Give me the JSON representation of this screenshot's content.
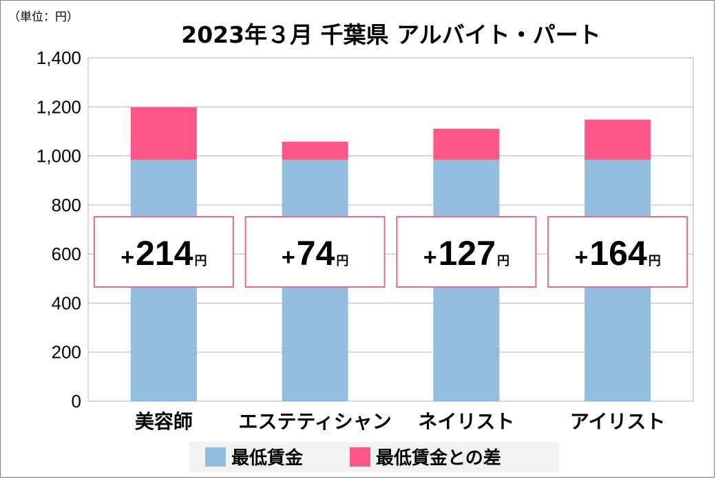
{
  "chart_data": {
    "type": "bar",
    "stacked": true,
    "title": "2023年３月 千葉県 アルバイト・パート",
    "unit_label": "（単位：円）",
    "categories": [
      "美容師",
      "エステティシャン",
      "ネイリスト",
      "アイリスト"
    ],
    "series": [
      {
        "name": "最低賃金",
        "color": "#92bddf",
        "values": [
          984,
          984,
          984,
          984
        ]
      },
      {
        "name": "最低賃金との差",
        "color": "#ff578a",
        "values": [
          214,
          74,
          127,
          164
        ]
      }
    ],
    "annotations": [
      {
        "prefix": "+",
        "value": "214",
        "suffix": "円"
      },
      {
        "prefix": "+",
        "value": "74",
        "suffix": "円"
      },
      {
        "prefix": "+",
        "value": "127",
        "suffix": "円"
      },
      {
        "prefix": "+",
        "value": "164",
        "suffix": "円"
      }
    ],
    "yticks": [
      "0",
      "200",
      "400",
      "600",
      "800",
      "1,000",
      "1,200",
      "1,400"
    ],
    "ylim": [
      0,
      1400
    ],
    "grid": true,
    "legend_position": "bottom",
    "annotation_border_color": "#e8669c"
  }
}
